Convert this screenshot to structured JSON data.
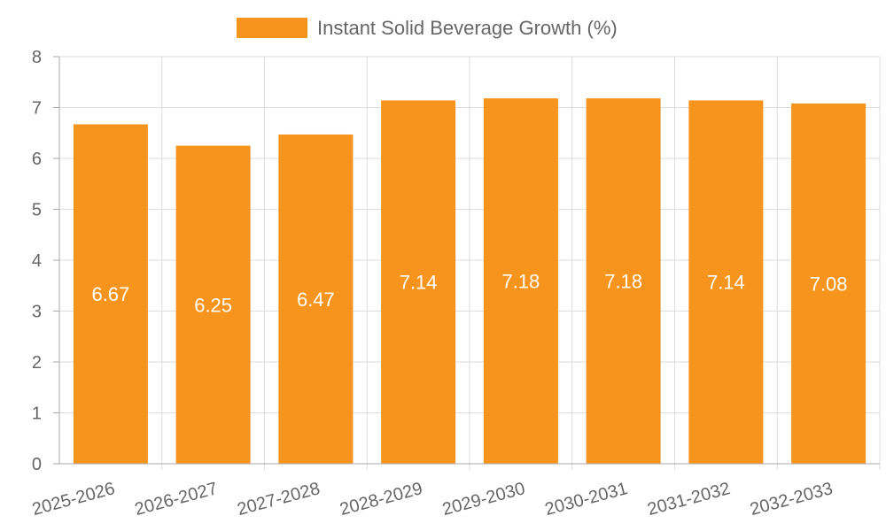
{
  "chart_data": {
    "type": "bar",
    "title": "",
    "xlabel": "",
    "ylabel": "",
    "categories": [
      "2025-2026",
      "2026-2027",
      "2027-2028",
      "2028-2029",
      "2029-2030",
      "2030-2031",
      "2031-2032",
      "2032-2033"
    ],
    "series": [
      {
        "name": "Instant Solid Beverage Growth (%)",
        "values": [
          6.67,
          6.25,
          6.47,
          7.14,
          7.18,
          7.18,
          7.14,
          7.08
        ],
        "color": "#f7941d"
      }
    ],
    "ylim": [
      0,
      8
    ],
    "yticks": [
      0,
      1,
      2,
      3,
      4,
      5,
      6,
      7,
      8
    ],
    "data_labels": [
      "6.67",
      "6.25",
      "6.47",
      "7.14",
      "7.18",
      "7.18",
      "7.14",
      "7.08"
    ],
    "grid": true,
    "legend_position": "top-center"
  },
  "colors": {
    "bar": "#f7941d",
    "grid": "#dddddd",
    "axis": "#aaaaaa",
    "text": "#666666",
    "label": "#ffffff"
  }
}
